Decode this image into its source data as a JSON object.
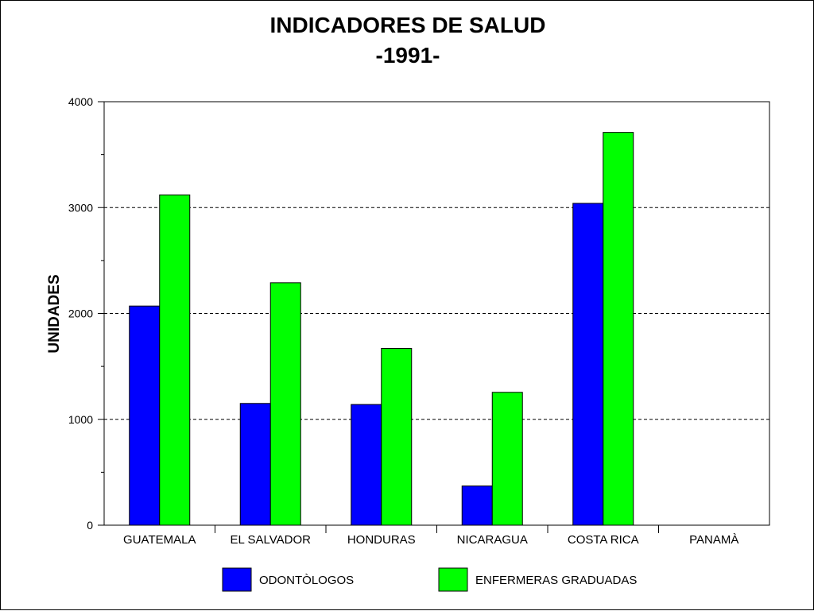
{
  "chart_data": {
    "type": "bar",
    "title": "INDICADORES DE SALUD",
    "subtitle": "-1991-",
    "xlabel": "",
    "ylabel": "UNIDADES",
    "ylim": [
      0,
      4000
    ],
    "yticks": [
      0,
      1000,
      2000,
      3000,
      4000
    ],
    "grid": "horizontal dashed at major ticks",
    "legend": "bottom-center",
    "categories": [
      "GUATEMALA",
      "EL SALVADOR",
      "HONDURAS",
      "NICARAGUA",
      "COSTA RICA",
      "PANAMÀ"
    ],
    "series": [
      {
        "name": "ODONTÒLOGOS",
        "color": "#0000ff",
        "values": [
          2070,
          1150,
          1140,
          370,
          3040,
          null
        ]
      },
      {
        "name": "ENFERMERAS GRADUADAS",
        "color": "#00ff00",
        "values": [
          3120,
          2290,
          1670,
          1255,
          3710,
          null
        ]
      }
    ]
  }
}
